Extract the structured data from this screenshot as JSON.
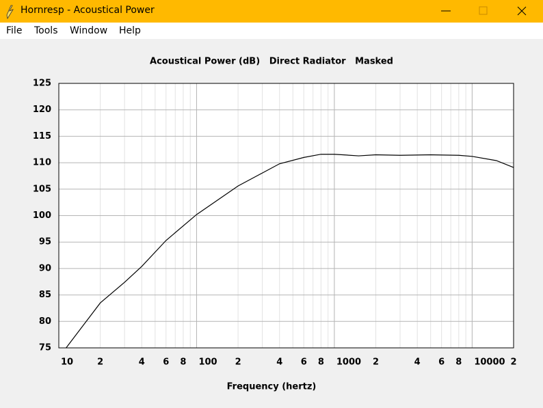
{
  "window": {
    "title": "Hornresp - Acoustical Power",
    "menu": [
      "File",
      "Tools",
      "Window",
      "Help"
    ]
  },
  "chart_data": {
    "type": "line",
    "title": "Acoustical Power (dB)   Direct Radiator   Masked",
    "x_label": "Frequency (hertz)",
    "log_x": true,
    "grid": true,
    "xlim": [
      10,
      20000
    ],
    "xticks": [
      10,
      {
        "value": 20,
        "label": "2"
      },
      {
        "value": 40,
        "label": "4"
      },
      {
        "value": 60,
        "label": "6"
      },
      {
        "value": 80,
        "label": "8"
      },
      100,
      {
        "value": 200,
        "label": "2"
      },
      {
        "value": 400,
        "label": "4"
      },
      {
        "value": 600,
        "label": "6"
      },
      {
        "value": 800,
        "label": "8"
      },
      1000,
      {
        "value": 2000,
        "label": "2"
      },
      {
        "value": 4000,
        "label": "4"
      },
      {
        "value": 6000,
        "label": "6"
      },
      {
        "value": 8000,
        "label": "8"
      },
      10000,
      {
        "value": 20000,
        "label": "2"
      }
    ],
    "xminor": [
      30,
      50,
      70,
      90,
      300,
      500,
      700,
      900,
      3000,
      5000,
      7000,
      9000
    ],
    "ylim": [
      75,
      125
    ],
    "yticks": [
      75,
      80,
      85,
      90,
      95,
      100,
      105,
      110,
      115,
      120,
      125
    ],
    "series": [
      {
        "color": "#000000",
        "x": [
          11.3,
          20,
          30,
          40,
          60,
          100,
          200,
          400,
          600,
          800,
          1000,
          1500,
          2000,
          3000,
          5000,
          8000,
          10000,
          15000,
          20000
        ],
        "values": [
          75,
          83.5,
          87.4,
          90.4,
          95.3,
          100.2,
          105.6,
          109.8,
          111,
          111.6,
          111.6,
          111.3,
          111.5,
          111.4,
          111.5,
          111.4,
          111.2,
          110.4,
          109.1
        ]
      }
    ]
  }
}
